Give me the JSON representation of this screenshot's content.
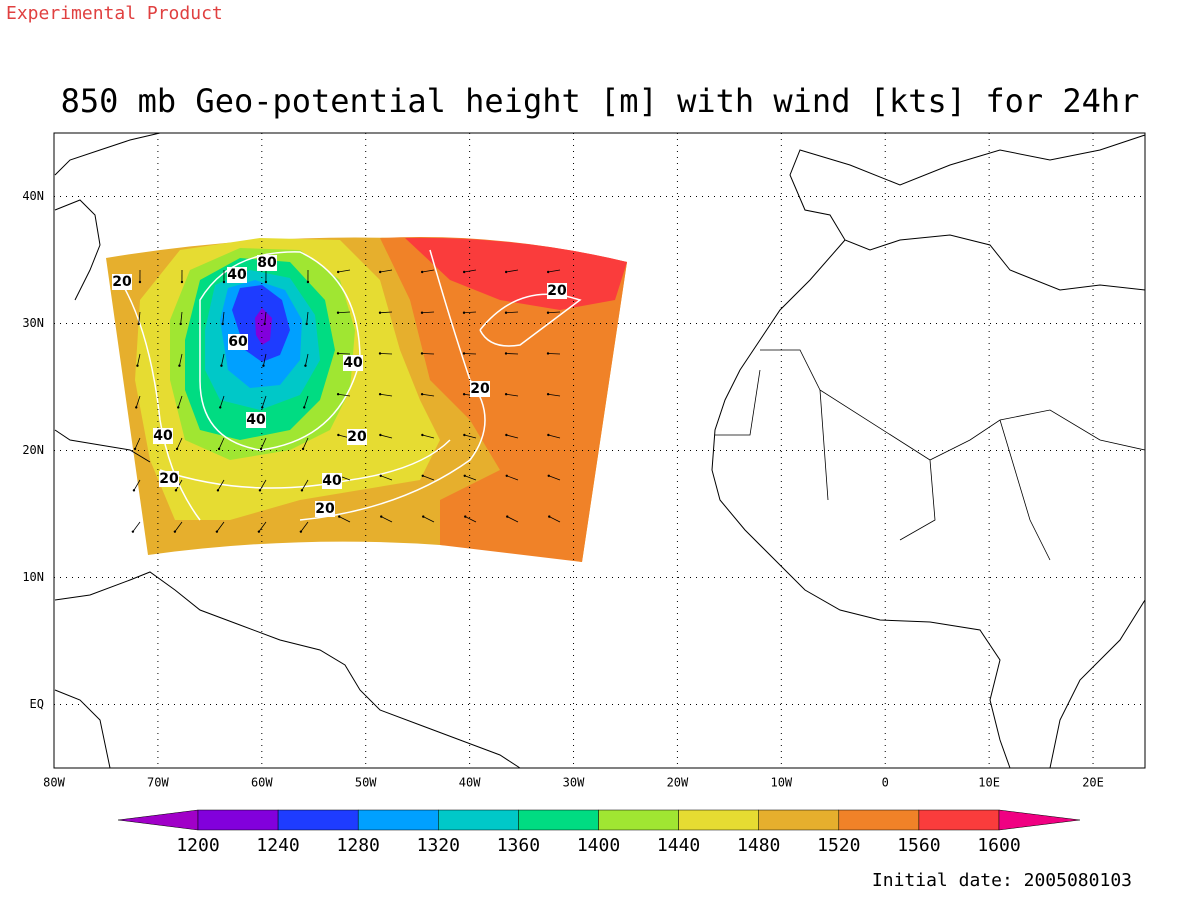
{
  "header": {
    "label": "Experimental Product"
  },
  "title": "850 mb Geo-potential height [m] with wind [kts] for 24hr",
  "map": {
    "xlim": [
      -80,
      25
    ],
    "ylim": [
      -5,
      45
    ],
    "xticks": [
      {
        "value": -80,
        "label": "80W"
      },
      {
        "value": -70,
        "label": "70W"
      },
      {
        "value": -60,
        "label": "60W"
      },
      {
        "value": -50,
        "label": "50W"
      },
      {
        "value": -40,
        "label": "40W"
      },
      {
        "value": -30,
        "label": "30W"
      },
      {
        "value": -20,
        "label": "20W"
      },
      {
        "value": -10,
        "label": "10W"
      },
      0,
      {
        "value": 10,
        "label": "10E"
      },
      {
        "value": 20,
        "label": "20E"
      }
    ],
    "yticks": [
      {
        "value": 0,
        "label": "EQ"
      },
      {
        "value": 10,
        "label": "10N"
      },
      {
        "value": 20,
        "label": "20N"
      },
      {
        "value": 30,
        "label": "30N"
      },
      {
        "value": 40,
        "label": "40N"
      }
    ],
    "grid": true,
    "contour_labels": [
      20,
      40,
      80,
      20,
      60,
      40,
      20,
      40,
      40,
      20,
      20,
      40,
      20
    ]
  },
  "colorbar": {
    "levels": [
      1200,
      1240,
      1280,
      1320,
      1360,
      1400,
      1440,
      1480,
      1520,
      1560,
      1600
    ],
    "colors": [
      "#a000c8",
      "#8200dc",
      "#1e3cff",
      "#00a0ff",
      "#00c8c8",
      "#00dc82",
      "#a0e632",
      "#e6dc32",
      "#e6af2d",
      "#f08228",
      "#fa3c3c",
      "#f00082"
    ]
  },
  "footer": {
    "label": "Initial date: 2005080103"
  }
}
